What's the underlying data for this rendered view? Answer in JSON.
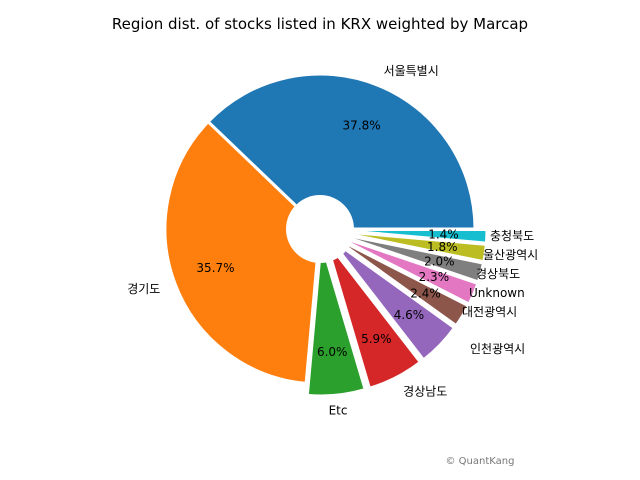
{
  "chart_data": {
    "type": "pie",
    "title": "Region dist. of stocks listed in KRX weighted by Marcap",
    "credit": "© QuantKang",
    "slices": [
      {
        "label": "서울특별시",
        "percent_text": "37.8%",
        "value": 37.8,
        "color": "#1f77b4"
      },
      {
        "label": "경기도",
        "percent_text": "35.7%",
        "value": 35.7,
        "color": "#ff7f0e"
      },
      {
        "label": "Etc",
        "percent_text": "6.0%",
        "value": 6.0,
        "color": "#2ca02c"
      },
      {
        "label": "경상남도",
        "percent_text": "5.9%",
        "value": 5.9,
        "color": "#d62728"
      },
      {
        "label": "인천광역시",
        "percent_text": "4.6%",
        "value": 4.6,
        "color": "#9467bd"
      },
      {
        "label": "대전광역시",
        "percent_text": "2.4%",
        "value": 2.4,
        "color": "#8c564b"
      },
      {
        "label": "Unknown",
        "percent_text": "2.3%",
        "value": 2.3,
        "color": "#e377c2"
      },
      {
        "label": "경상북도",
        "percent_text": "2.0%",
        "value": 2.0,
        "color": "#7f7f7f"
      },
      {
        "label": "울산광역시",
        "percent_text": "1.8%",
        "value": 1.8,
        "color": "#bcbd22"
      },
      {
        "label": "충청북도",
        "percent_text": "1.4%",
        "value": 1.4,
        "color": "#17becf"
      }
    ]
  }
}
